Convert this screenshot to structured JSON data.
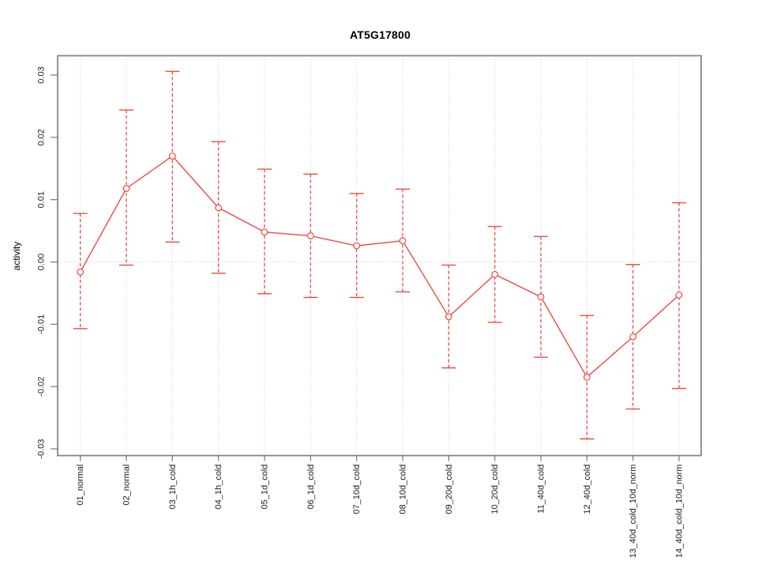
{
  "page": {
    "background": "#ffffff"
  },
  "chart_data": {
    "type": "line",
    "title": "AT5G17800",
    "ylabel": "activity",
    "xlabel": "",
    "marker": "open-circle",
    "error_bars": true,
    "legend": "none",
    "grid": "dotted vertical gridline at each category; dotted horizontal line at zero",
    "ylim": [
      -0.03,
      0.03
    ],
    "yticks": [
      0.03,
      0.02,
      0.01,
      0.0,
      -0.01,
      -0.02,
      -0.03
    ],
    "ytick_labels": [
      "0.03",
      "0.02",
      "0.01",
      "0.00",
      "-0.01",
      "-0.02",
      "-0.03"
    ],
    "categories": [
      "01_normal",
      "02_normal",
      "03_1h_cold",
      "04_1h_cold",
      "05_1d_cold",
      "06_1d_cold",
      "07_10d_cold",
      "08_10d_cold",
      "09_20d_cold",
      "10_20d_cold",
      "11_40d_cold",
      "12_40d_cold",
      "13_40d_cold_10d_norm",
      "14_40d_cold_10d_norm"
    ],
    "series": [
      {
        "name": "activity",
        "values": [
          -0.0016,
          0.0118,
          0.017,
          0.0087,
          0.0048,
          0.0042,
          0.0026,
          0.0034,
          -0.0088,
          -0.002,
          -0.0056,
          -0.0185,
          -0.012,
          -0.0053
        ],
        "upper": [
          0.0078,
          0.0244,
          0.0306,
          0.0193,
          0.0149,
          0.0141,
          0.011,
          0.0117,
          -0.0005,
          0.0057,
          0.0041,
          -0.0086,
          -0.0004,
          0.0095
        ],
        "lower": [
          -0.0107,
          -0.0005,
          0.0032,
          -0.0018,
          -0.0051,
          -0.0057,
          -0.0057,
          -0.0048,
          -0.017,
          -0.0097,
          -0.0153,
          -0.0284,
          -0.0236,
          -0.0203
        ]
      }
    ],
    "colors": {
      "series": "#ef4a40",
      "grid": "#d8d8d8",
      "box": "#808080",
      "tick": "#787878",
      "text": "#1a1a1a"
    }
  }
}
